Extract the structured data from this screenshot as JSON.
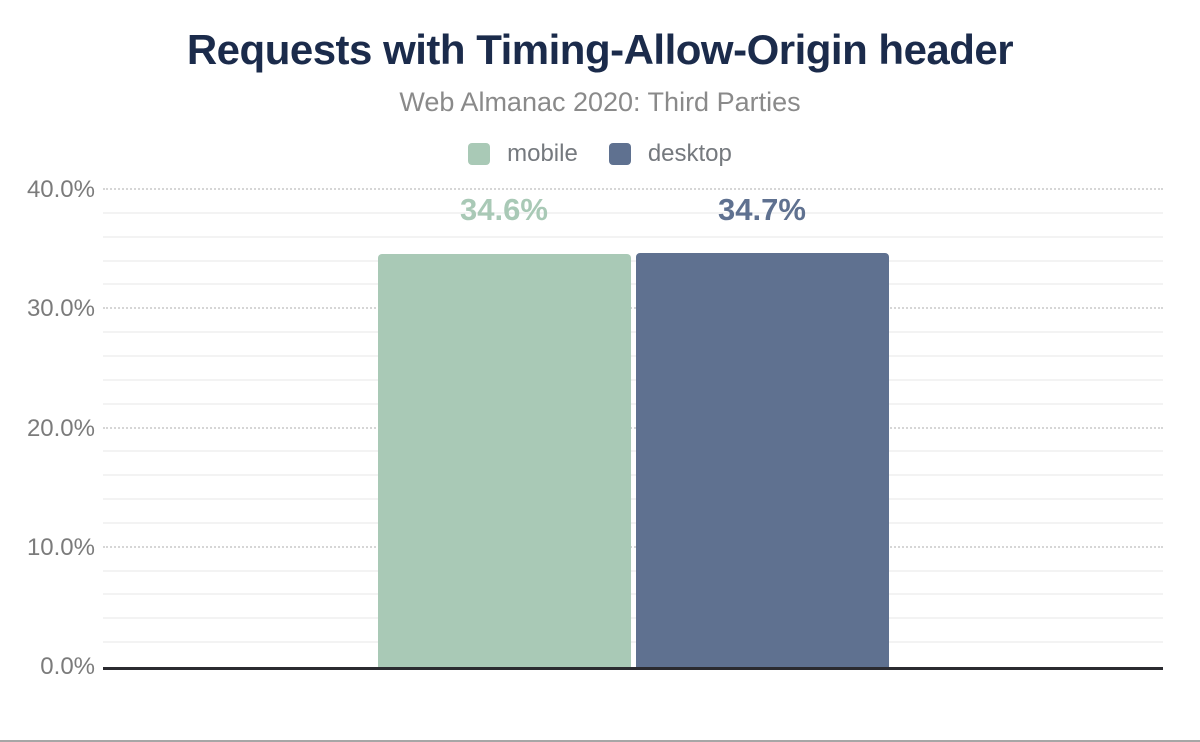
{
  "page": {
    "background": "#ffffff",
    "bottom_border_color": "#a6a6a6"
  },
  "header": {
    "title": "Requests with Timing-Allow-Origin header",
    "subtitle": "Web Almanac 2020: Third Parties"
  },
  "legend": {
    "position": "top",
    "items": [
      {
        "label": "mobile",
        "color": "#a9c9b6"
      },
      {
        "label": "desktop",
        "color": "#5f7190"
      }
    ]
  },
  "chart_data": {
    "type": "bar",
    "title": "Requests with Timing-Allow-Origin header",
    "subtitle": "Web Almanac 2020: Third Parties",
    "series": [
      {
        "name": "mobile",
        "values": [
          34.6
        ],
        "display_label": "34.6%",
        "color": "#a9c9b6"
      },
      {
        "name": "desktop",
        "values": [
          34.7
        ],
        "display_label": "34.7%",
        "color": "#5f7190"
      }
    ],
    "xlabel": "",
    "ylabel": "",
    "ylim": [
      0,
      40
    ],
    "y_tick_values": [
      0,
      10,
      20,
      30,
      40
    ],
    "y_tick_labels": [
      "0.0%",
      "10.0%",
      "20.0%",
      "30.0%",
      "40.0%"
    ],
    "grid": true,
    "minor_gridline_step": 2,
    "major_gridline_step": 10,
    "legend_position": "top",
    "styles": {
      "title_color": "#1b2b4b",
      "subtitle_color": "#8a8a8a",
      "axis_label_color": "#7b7b7b",
      "legend_text_color": "#75797e",
      "minor_grid_color": "#f3f3f3",
      "major_grid_color": "#d6d6d6",
      "baseline_color": "#2b2b30"
    }
  }
}
